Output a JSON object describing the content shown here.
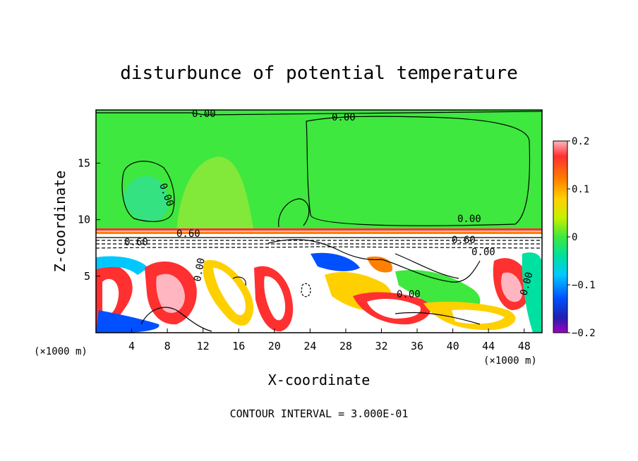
{
  "chart_data": {
    "type": "heatmap",
    "title": "disturbunce of potential temperature",
    "xlabel": "X-coordinate",
    "ylabel": "Z-coordinate",
    "x_unit": "(×1000 m)",
    "y_unit": "(×1000 m)",
    "xlim": [
      0,
      50
    ],
    "ylim": [
      0,
      19.7
    ],
    "x_ticks": [
      "4",
      "8",
      "12",
      "16",
      "20",
      "24",
      "28",
      "32",
      "36",
      "40",
      "44",
      "48"
    ],
    "y_ticks": [
      "5",
      "10",
      "15"
    ],
    "colorbar": {
      "ticks": [
        "0.2",
        "0.1",
        "0",
        "−0.1",
        "−0.2"
      ],
      "range": [
        -0.2,
        0.2
      ],
      "colors": [
        "#ffb6c1",
        "#ff2a2a",
        "#ff7a00",
        "#ffd000",
        "#c8f000",
        "#3ee83e",
        "#00e0a0",
        "#00c8ff",
        "#0050ff",
        "#2020b0",
        "#a000c0"
      ]
    },
    "contour_labels": [
      "0.00",
      "0.00",
      "0.00",
      "0.00",
      "0.60",
      "0.60",
      "0.60",
      "0.00",
      "0.00",
      "0.00",
      "0.00"
    ],
    "contour_note": "CONTOUR INTERVAL = 3.000E-01",
    "field_summary": {
      "upper_layer_value": 0.0,
      "inversion_height": 9.0,
      "lower_layer": "turbulent, values between -0.2 and 0.2"
    }
  }
}
